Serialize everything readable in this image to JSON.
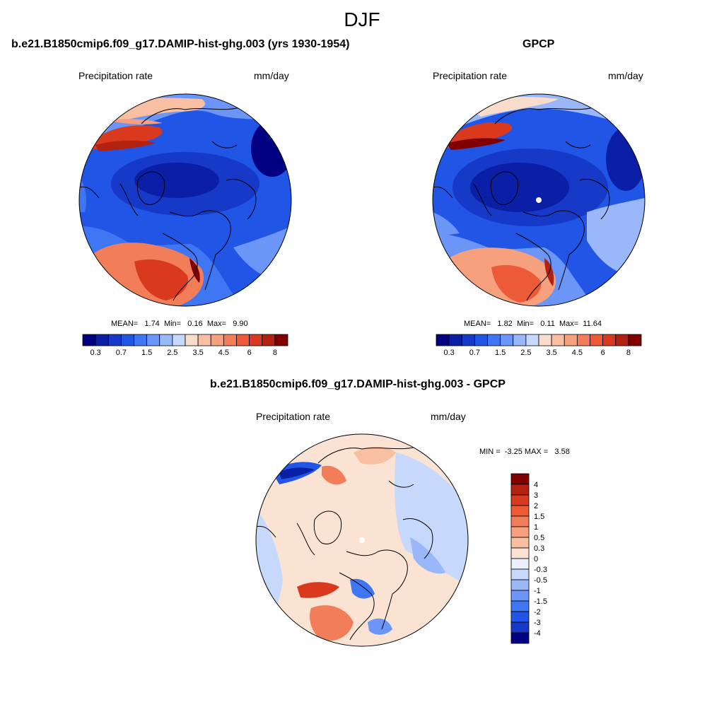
{
  "figure": {
    "title": "DJF"
  },
  "chart_data": [
    {
      "type": "heatmap",
      "title": "b.e21.B1850cmip6.f09_g17.DAMIP-hist-ghg.003 (yrs 1930-1954)",
      "variable": "Precipitation rate",
      "units": "mm/day",
      "projection": "polar-stereographic",
      "stats": {
        "mean_label": "MEAN=",
        "mean": "1.74",
        "min_label": "Min=",
        "min": "0.16",
        "max_label": "Max=",
        "max": "9.90"
      },
      "colorbar": {
        "orientation": "horizontal",
        "levels": [
          0.2,
          0.3,
          0.5,
          0.7,
          1,
          1.5,
          2,
          2.5,
          3,
          3.5,
          4,
          4.5,
          5,
          6,
          7,
          8
        ],
        "tick_labels": [
          "0.3",
          "0.7",
          "1.5",
          "2.5",
          "3.5",
          "4.5",
          "6",
          "8"
        ],
        "colors": [
          "#000080",
          "#0a1fa6",
          "#1639c7",
          "#2055e5",
          "#3f76f3",
          "#6b95f7",
          "#9ab7fa",
          "#c6d8fb",
          "#f9dccb",
          "#f8bfa3",
          "#f6a07e",
          "#f27d59",
          "#ec5a37",
          "#d93a1e",
          "#b32110",
          "#800000"
        ]
      }
    },
    {
      "type": "heatmap",
      "title": "GPCP",
      "variable": "Precipitation rate",
      "units": "mm/day",
      "projection": "polar-stereographic",
      "stats": {
        "mean_label": "MEAN=",
        "mean": "1.82",
        "min_label": "Min=",
        "min": "0.11",
        "max_label": "Max=",
        "max": "11.64"
      },
      "colorbar": {
        "orientation": "horizontal",
        "levels": [
          0.2,
          0.3,
          0.5,
          0.7,
          1,
          1.5,
          2,
          2.5,
          3,
          3.5,
          4,
          4.5,
          5,
          6,
          7,
          8
        ],
        "tick_labels": [
          "0.3",
          "0.7",
          "1.5",
          "2.5",
          "3.5",
          "4.5",
          "6",
          "8"
        ],
        "colors": [
          "#000080",
          "#0a1fa6",
          "#1639c7",
          "#2055e5",
          "#3f76f3",
          "#6b95f7",
          "#9ab7fa",
          "#c6d8fb",
          "#f9dccb",
          "#f8bfa3",
          "#f6a07e",
          "#f27d59",
          "#ec5a37",
          "#d93a1e",
          "#b32110",
          "#800000"
        ]
      }
    },
    {
      "type": "heatmap",
      "title": "b.e21.B1850cmip6.f09_g17.DAMIP-hist-ghg.003 - GPCP",
      "variable": "Precipitation rate",
      "units": "mm/day",
      "projection": "polar-stereographic",
      "stats": {
        "min_label": "MIN =",
        "min": "-3.25",
        "max_label": "MAX =",
        "max": "3.58"
      },
      "colorbar": {
        "orientation": "vertical",
        "tick_labels": [
          "4",
          "3",
          "2",
          "1.5",
          "1",
          "0.5",
          "0.3",
          "0",
          "-0.3",
          "-0.5",
          "-1",
          "-1.5",
          "-2",
          "-3",
          "-4"
        ],
        "colors": [
          "#800000",
          "#b32110",
          "#d93a1e",
          "#ec5a37",
          "#f27d59",
          "#f6a07e",
          "#f8bfa3",
          "#fbe3d4",
          "#e9f0fb",
          "#c6d8fb",
          "#9ab7fa",
          "#6b95f7",
          "#3f76f3",
          "#2055e5",
          "#1639c7",
          "#000080"
        ]
      }
    }
  ]
}
